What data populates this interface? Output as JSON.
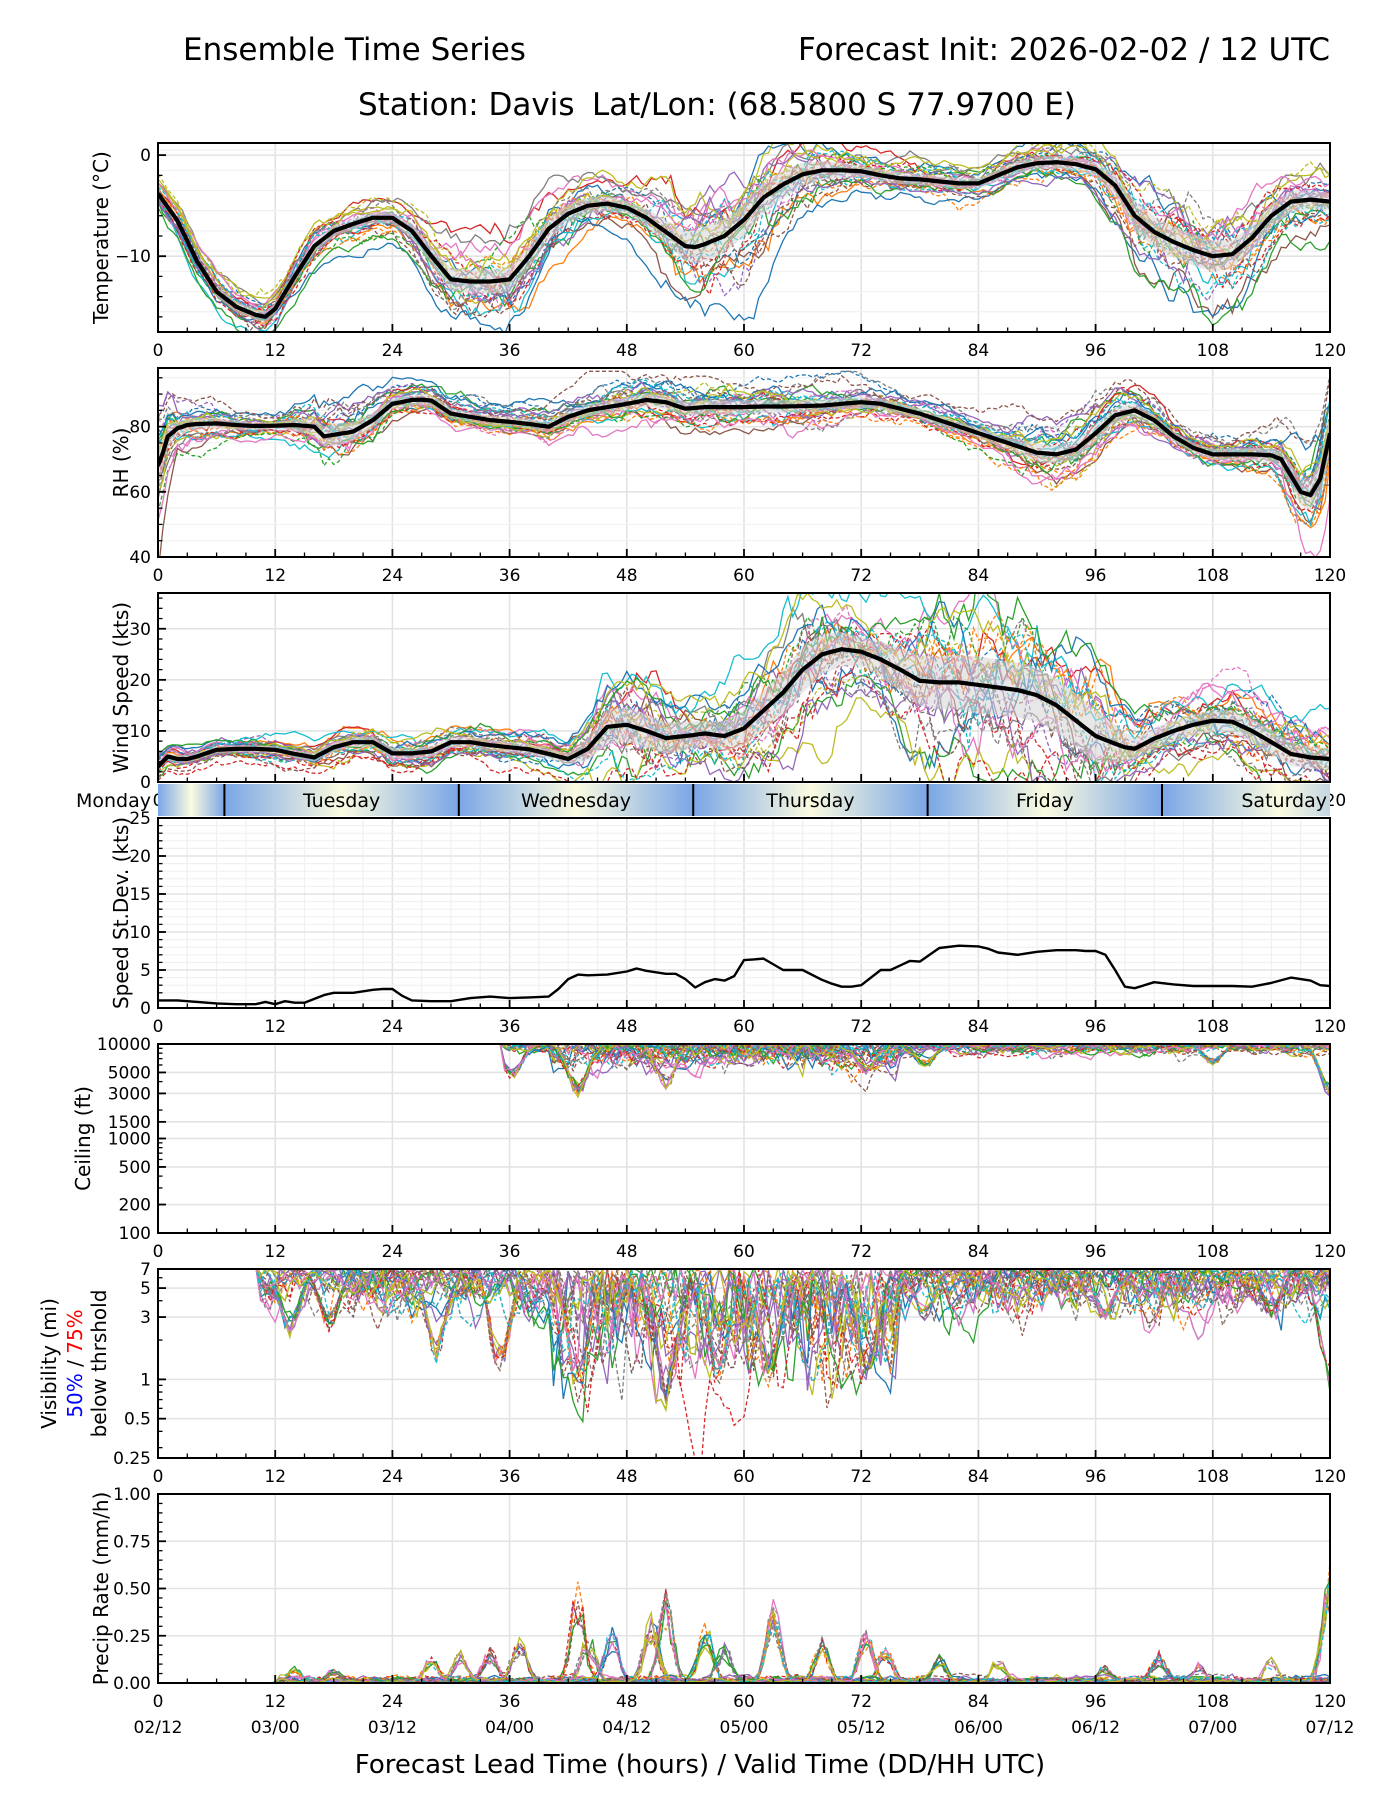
{
  "header": {
    "title": "Ensemble Time Series",
    "init": "Forecast Init: 2026-02-02 / 12 UTC",
    "station": "Station: Davis",
    "latlon": "Lat/Lon: (68.5800 S 77.9700 E)"
  },
  "chart_data": [
    {
      "id": "temperature",
      "type": "line",
      "ylabel": "Temperature (°C)",
      "ylim": [
        -17.5,
        1.2
      ],
      "yticks": [
        0,
        -10
      ],
      "ytick_labels": [
        "0",
        "−10"
      ],
      "yminor_step": 2,
      "xlim": [
        0,
        120
      ],
      "xticks": [
        0,
        12,
        24,
        36,
        48,
        60,
        72,
        84,
        96,
        108,
        120
      ],
      "grid": true,
      "members": 30,
      "mean": {
        "x": [
          0,
          2,
          4,
          6,
          8,
          10,
          11,
          12,
          14,
          16,
          18,
          20,
          22,
          24,
          26,
          28,
          30,
          32,
          34,
          36,
          38,
          40,
          42,
          44,
          46,
          48,
          50,
          52,
          54,
          55,
          56,
          58,
          60,
          62,
          64,
          66,
          68,
          70,
          72,
          74,
          76,
          78,
          80,
          82,
          84,
          86,
          88,
          90,
          92,
          94,
          96,
          98,
          100,
          102,
          104,
          106,
          108,
          110,
          112,
          114,
          116,
          118,
          120
        ],
        "y": [
          -3.8,
          -6.5,
          -10.5,
          -13.5,
          -15,
          -15.8,
          -16,
          -15.2,
          -12,
          -9,
          -7.5,
          -6.8,
          -6.2,
          -6.2,
          -7.5,
          -10,
          -12.3,
          -12.5,
          -12.5,
          -12.3,
          -10,
          -7.3,
          -5.8,
          -5,
          -4.8,
          -5.2,
          -6.2,
          -7.6,
          -9,
          -9.1,
          -8.8,
          -8,
          -6.4,
          -4.2,
          -2.9,
          -1.9,
          -1.5,
          -1.5,
          -1.6,
          -2,
          -2.3,
          -2.4,
          -2.6,
          -2.8,
          -2.8,
          -2,
          -1.2,
          -0.8,
          -0.7,
          -0.9,
          -1.4,
          -3,
          -6,
          -7.6,
          -8.6,
          -9.4,
          -10,
          -9.8,
          -8.2,
          -6,
          -4.6,
          -4.4,
          -4.6
        ]
      },
      "spread": {
        "x": [
          0,
          12,
          24,
          30,
          36,
          48,
          56,
          62,
          72,
          84,
          96,
          100,
          108,
          112,
          120
        ],
        "y": [
          0.6,
          0.8,
          0.8,
          1.6,
          1.8,
          0.9,
          2.5,
          2.2,
          0.8,
          0.8,
          1,
          2.2,
          2.2,
          1.8,
          1.2
        ]
      }
    },
    {
      "id": "rh",
      "type": "line",
      "ylabel": "RH (%)",
      "ylim": [
        40,
        98
      ],
      "yticks": [
        40,
        60,
        80
      ],
      "ytick_labels": [
        "40",
        "60",
        "80"
      ],
      "yminor_step": 5,
      "xlim": [
        0,
        120
      ],
      "xticks": [
        0,
        12,
        24,
        36,
        48,
        60,
        72,
        84,
        96,
        108,
        120
      ],
      "grid": true,
      "members": 30,
      "mean": {
        "x": [
          0,
          0.5,
          1,
          2,
          3,
          4,
          6,
          8,
          10,
          12,
          14,
          16,
          17,
          18,
          20,
          22,
          24,
          26,
          27,
          28,
          30,
          32,
          34,
          36,
          38,
          40,
          42,
          44,
          46,
          48,
          50,
          52,
          54,
          56,
          58,
          60,
          62,
          64,
          66,
          68,
          70,
          72,
          74,
          76,
          78,
          80,
          82,
          84,
          86,
          88,
          90,
          92,
          94,
          96,
          98,
          100,
          102,
          104,
          106,
          108,
          110,
          112,
          114,
          115,
          116,
          117,
          118,
          119,
          120
        ],
        "y": [
          68,
          72,
          77,
          79.5,
          80.5,
          80.8,
          81,
          80.5,
          80.2,
          80.3,
          80.5,
          80,
          77,
          77.5,
          78.5,
          82,
          87,
          88.2,
          88.3,
          88,
          84,
          83,
          82,
          81.5,
          80.8,
          80,
          83,
          85,
          86,
          87,
          88.2,
          87.5,
          85.5,
          86,
          86,
          86,
          86.2,
          86.2,
          86.3,
          86.5,
          87,
          87.5,
          87,
          85.5,
          84,
          82,
          80,
          78,
          76,
          74,
          72,
          71.5,
          73,
          78,
          83.5,
          85,
          82,
          77,
          73.5,
          71.5,
          71.5,
          71.5,
          71.2,
          70,
          65,
          60,
          59,
          64,
          78
        ]
      },
      "spread": {
        "x": [
          0,
          2,
          12,
          18,
          24,
          36,
          48,
          60,
          72,
          84,
          90,
          96,
          104,
          114,
          117,
          120
        ],
        "y": [
          8,
          3,
          1.5,
          5,
          2.5,
          2,
          3,
          3,
          2.5,
          2,
          4,
          4,
          2,
          3,
          6,
          8
        ]
      }
    },
    {
      "id": "wind_speed",
      "type": "line",
      "ylabel": "Wind Speed (kts)",
      "ylim": [
        0,
        37
      ],
      "yticks": [
        0,
        10,
        20,
        30
      ],
      "ytick_labels": [
        "0",
        "10",
        "20",
        "30"
      ],
      "yminor_step": 2,
      "xlim": [
        0,
        120
      ],
      "xticks": [
        0,
        12,
        24,
        36,
        48,
        60,
        72,
        84,
        96,
        108,
        120
      ],
      "grid": true,
      "members": 30,
      "mean": {
        "x": [
          0,
          1,
          2,
          3,
          4,
          6,
          8,
          10,
          12,
          14,
          16,
          18,
          20,
          22,
          24,
          26,
          28,
          30,
          32,
          34,
          36,
          38,
          40,
          42,
          44,
          46,
          48,
          50,
          52,
          54,
          56,
          58,
          60,
          62,
          64,
          66,
          68,
          70,
          72,
          74,
          76,
          78,
          80,
          82,
          84,
          86,
          88,
          90,
          92,
          94,
          96,
          98,
          99,
          100,
          102,
          104,
          106,
          108,
          110,
          112,
          114,
          116,
          118,
          120
        ],
        "y": [
          3,
          5,
          4.5,
          4.5,
          5,
          6.3,
          6.5,
          6.5,
          6.3,
          5.5,
          4.8,
          6.8,
          7.8,
          7.8,
          5.6,
          5.6,
          6,
          7.8,
          7.8,
          7.2,
          6.8,
          6.4,
          5.5,
          4.5,
          6.5,
          10.8,
          11.2,
          10,
          8.6,
          9,
          9.5,
          9,
          10.5,
          14,
          17.5,
          22,
          25,
          26,
          25.5,
          24,
          22,
          19.8,
          19.5,
          19.5,
          19,
          18.5,
          18,
          17,
          15,
          12,
          9,
          7.5,
          6.8,
          6.5,
          8.5,
          10,
          11.2,
          12,
          11.8,
          10,
          7.8,
          5.5,
          4.8,
          4.5
        ]
      },
      "spread": {
        "x": [
          0,
          12,
          24,
          36,
          42,
          46,
          52,
          56,
          60,
          66,
          72,
          78,
          84,
          90,
          96,
          100,
          108,
          114,
          120
        ],
        "y": [
          1,
          1,
          1.5,
          1.5,
          1.5,
          5,
          4.5,
          3.5,
          5,
          6.5,
          4,
          7,
          8,
          7.5,
          7.5,
          3,
          3,
          3.5,
          3
        ]
      }
    },
    {
      "id": "speed_stdev",
      "type": "line",
      "ylabel": "Speed St.Dev. (kts)",
      "ylim": [
        0,
        25
      ],
      "yticks": [
        0,
        5,
        10,
        15,
        20,
        25
      ],
      "ytick_labels": [
        "0",
        "5",
        "10",
        "15",
        "20",
        "25"
      ],
      "yminor_step": 1,
      "xlim": [
        0,
        120
      ],
      "xticks": [
        0,
        12,
        24,
        36,
        48,
        60,
        72,
        84,
        96,
        108,
        120
      ],
      "grid": true,
      "mean": {
        "x": [
          0,
          1,
          2,
          3,
          4,
          6,
          8,
          10,
          11,
          12,
          13,
          14,
          15,
          16,
          17,
          18,
          20,
          22,
          23,
          24,
          25,
          26,
          28,
          30,
          32,
          34,
          36,
          38,
          40,
          41,
          42,
          43,
          44,
          46,
          48,
          49,
          50,
          52,
          53,
          54,
          55,
          56,
          57,
          58,
          59,
          60,
          61,
          62,
          64,
          66,
          68,
          69,
          70,
          71,
          72,
          74,
          75,
          76,
          77,
          78,
          80,
          82,
          84,
          85,
          86,
          88,
          90,
          92,
          94,
          95,
          96,
          97,
          98,
          99,
          100,
          102,
          104,
          106,
          108,
          110,
          112,
          114,
          116,
          118,
          119,
          120
        ],
        "y": [
          1,
          1,
          1,
          0.9,
          0.8,
          0.6,
          0.5,
          0.5,
          0.8,
          0.5,
          0.9,
          0.7,
          0.7,
          1.2,
          1.7,
          2,
          2,
          2.4,
          2.5,
          2.5,
          1.6,
          1,
          0.9,
          0.9,
          1.3,
          1.5,
          1.3,
          1.4,
          1.5,
          2.5,
          3.8,
          4.4,
          4.3,
          4.4,
          4.8,
          5.2,
          4.9,
          4.5,
          4.5,
          3.8,
          2.7,
          3.4,
          3.8,
          3.6,
          4.2,
          6.3,
          6.4,
          6.5,
          5,
          5,
          3.7,
          3.2,
          2.8,
          2.8,
          3,
          5,
          5,
          5.6,
          6.2,
          6.1,
          7.9,
          8.2,
          8.1,
          7.8,
          7.3,
          7,
          7.4,
          7.6,
          7.6,
          7.5,
          7.5,
          7,
          5,
          2.8,
          2.6,
          3.4,
          3.1,
          2.9,
          2.9,
          2.9,
          2.8,
          3.3,
          4,
          3.6,
          3,
          2.9
        ]
      }
    },
    {
      "id": "ceiling",
      "type": "line",
      "ylabel": "Ceiling (ft)",
      "yscale": "log",
      "ylim": [
        100,
        10000
      ],
      "yticks": [
        100,
        200,
        500,
        1000,
        1500,
        3000,
        5000,
        10000
      ],
      "ytick_labels": [
        "100",
        "200",
        "500",
        "1000",
        "1500",
        "3000",
        "5000",
        "10000"
      ],
      "xlim": [
        0,
        120
      ],
      "xticks": [
        0,
        12,
        24,
        36,
        48,
        60,
        72,
        84,
        96,
        108,
        120
      ],
      "grid": true,
      "members": 30,
      "notable_minima": [
        {
          "x": 36.2,
          "y": 4200
        },
        {
          "x": 43,
          "y": 2700
        },
        {
          "x": 52,
          "y": 3300
        },
        {
          "x": 72.5,
          "y": 4800
        },
        {
          "x": 78.5,
          "y": 5500
        },
        {
          "x": 108,
          "y": 6000
        },
        {
          "x": 120,
          "y": 2700
        }
      ],
      "active_window": [
        35.5,
        120
      ]
    },
    {
      "id": "visibility",
      "type": "line",
      "ylabel": "Visibility (mi)",
      "ylabel_line2_a": "50%",
      "ylabel_line2_sep": " / ",
      "ylabel_line2_b": "75%",
      "ylabel_line3": "below thrshold",
      "ylabel_colors": {
        "a": "#0000ff",
        "b": "#ff0000"
      },
      "yscale": "log",
      "ylim": [
        0.25,
        7
      ],
      "yticks": [
        0.25,
        0.5,
        1,
        3,
        5,
        7
      ],
      "ytick_labels": [
        "0.25",
        "0.5",
        "1",
        "3",
        "5",
        "7"
      ],
      "xlim": [
        0,
        120
      ],
      "xticks": [
        0,
        12,
        24,
        36,
        48,
        60,
        72,
        84,
        96,
        108,
        120
      ],
      "grid": true,
      "members": 30,
      "notable_minima": [
        {
          "x": 11.5,
          "y": 4.6
        },
        {
          "x": 13.5,
          "y": 2.1
        },
        {
          "x": 17.5,
          "y": 2.3
        },
        {
          "x": 28.5,
          "y": 1.3
        },
        {
          "x": 35,
          "y": 1.0
        },
        {
          "x": 43,
          "y": 0.7
        },
        {
          "x": 52,
          "y": 0.65
        },
        {
          "x": 57.5,
          "y": 0.9
        },
        {
          "x": 62.5,
          "y": 0.8
        },
        {
          "x": 72.5,
          "y": 0.9
        },
        {
          "x": 78.5,
          "y": 2.8
        },
        {
          "x": 97,
          "y": 2.7
        },
        {
          "x": 101.5,
          "y": 2.1
        },
        {
          "x": 114,
          "y": 3.0
        },
        {
          "x": 120,
          "y": 0.6
        }
      ],
      "active_window": [
        10.5,
        120
      ]
    },
    {
      "id": "precip_rate",
      "type": "line",
      "ylabel": "Precip Rate (mm/h)",
      "ylim": [
        0,
        1
      ],
      "yticks": [
        0,
        0.25,
        0.5,
        0.75,
        1.0
      ],
      "ytick_labels": [
        "0.00",
        "0.25",
        "0.50",
        "0.75",
        "1.00"
      ],
      "yminor_step": 0.05,
      "xlim": [
        0,
        120
      ],
      "xticks": [
        0,
        12,
        24,
        36,
        48,
        60,
        72,
        84,
        96,
        108,
        120
      ],
      "xtick_labels_line2": [
        "02/12",
        "03/00",
        "03/12",
        "04/00",
        "04/12",
        "05/00",
        "05/12",
        "06/00",
        "06/12",
        "07/00",
        "07/12"
      ],
      "xlabel": "Forecast Lead Time (hours) / Valid Time (DD/HH UTC)",
      "grid": true,
      "members": 30,
      "notable_peaks": [
        {
          "x": 14,
          "y": 0.09
        },
        {
          "x": 18,
          "y": 0.08
        },
        {
          "x": 28,
          "y": 0.15
        },
        {
          "x": 31,
          "y": 0.18
        },
        {
          "x": 34,
          "y": 0.2
        },
        {
          "x": 37,
          "y": 0.28
        },
        {
          "x": 43,
          "y": 0.55
        },
        {
          "x": 44,
          "y": 0.28
        },
        {
          "x": 46.5,
          "y": 0.33
        },
        {
          "x": 50.5,
          "y": 0.4
        },
        {
          "x": 52,
          "y": 0.5
        },
        {
          "x": 56,
          "y": 0.33
        },
        {
          "x": 58,
          "y": 0.23
        },
        {
          "x": 63,
          "y": 0.45
        },
        {
          "x": 68,
          "y": 0.25
        },
        {
          "x": 72.5,
          "y": 0.3
        },
        {
          "x": 74.5,
          "y": 0.2
        },
        {
          "x": 80,
          "y": 0.15
        },
        {
          "x": 86,
          "y": 0.14
        },
        {
          "x": 97,
          "y": 0.1
        },
        {
          "x": 102.5,
          "y": 0.17
        },
        {
          "x": 106.5,
          "y": 0.11
        },
        {
          "x": 114,
          "y": 0.14
        },
        {
          "x": 120,
          "y": 0.65
        }
      ]
    }
  ],
  "day_band": {
    "days": [
      {
        "label": "Monday",
        "start": 0,
        "end": 6.8
      },
      {
        "label": "Tuesday",
        "start": 6.8,
        "end": 30.8
      },
      {
        "label": "Wednesday",
        "start": 30.8,
        "end": 54.8
      },
      {
        "label": "Thursday",
        "start": 54.8,
        "end": 78.8
      },
      {
        "label": "Friday",
        "start": 78.8,
        "end": 102.8
      },
      {
        "label": "Saturday",
        "start": 102.8,
        "end": 126.8
      }
    ],
    "colors": {
      "night": "#7aa6e6",
      "day": "#fbfbe0"
    }
  },
  "member_colors": [
    "#1f77b4",
    "#ff7f0e",
    "#2ca02c",
    "#d62728",
    "#9467bd",
    "#8c564b",
    "#e377c2",
    "#7f7f7f",
    "#bcbd22",
    "#17becf"
  ],
  "mean_color": "#000000",
  "spread_color": "#d3d3d3"
}
